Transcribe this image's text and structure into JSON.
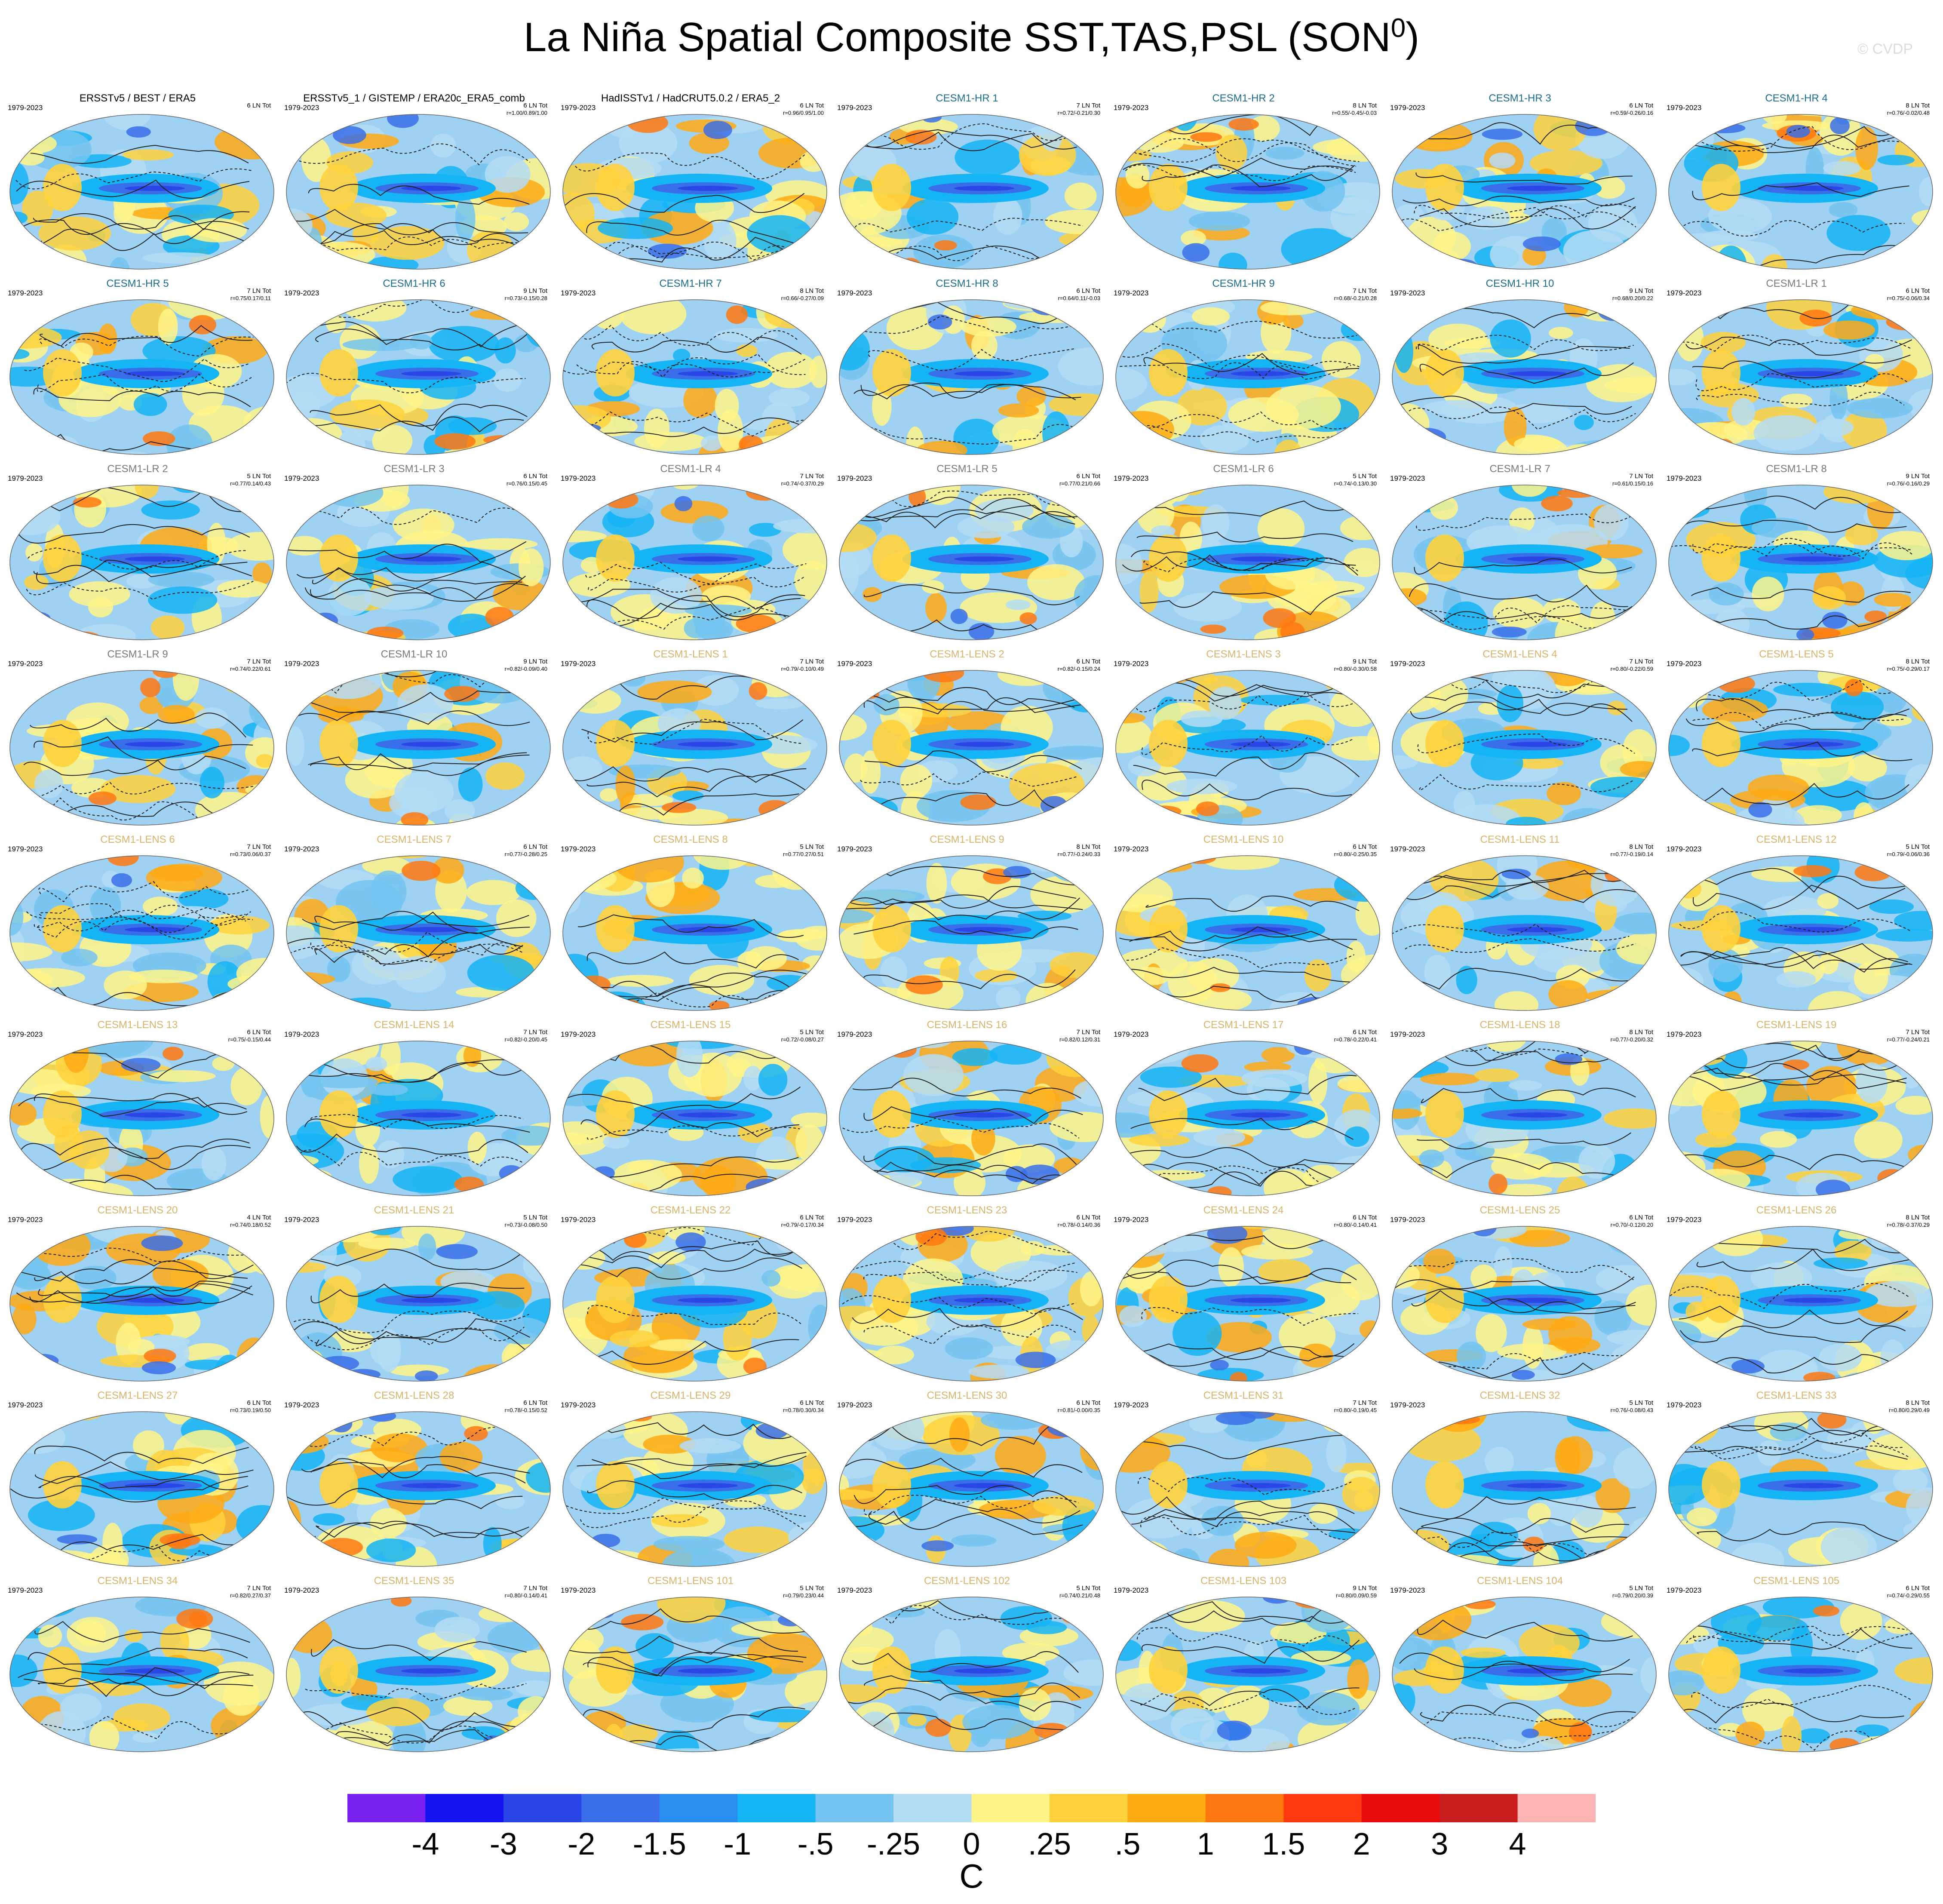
{
  "title": "La Niña Spatial Composite SST,TAS,PSL (SON",
  "title_sup": "0",
  "title_close": ")",
  "watermark": "© CVDP",
  "colors": {
    "panel_title_obs": "#000000",
    "panel_title_hr": "#1a6d8f",
    "panel_title_lr": "#7a7a7a",
    "panel_title_lens": "#d9b46a",
    "ocean_cool": "#59b8f0",
    "ocean_deep_cool": "#3050e0",
    "warm": "#ffd33a"
  },
  "chart_data": {
    "type": "heatmap",
    "variables": [
      "SST",
      "TAS",
      "PSL"
    ],
    "season": "SON0",
    "colorbar": {
      "levels": [
        "-4",
        "-3",
        "-2",
        "-1.5",
        "-1",
        "-.5",
        "-.25",
        "0",
        ".25",
        ".5",
        "1",
        "1.5",
        "2",
        "3",
        "4"
      ],
      "colors": [
        "#7a22f0",
        "#1414f0",
        "#2a46e6",
        "#3a6ee8",
        "#2a8ef0",
        "#14b4f5",
        "#74c4f0",
        "#b4dcf4",
        "#fff488",
        "#ffd23c",
        "#ffaa14",
        "#ff7810",
        "#ff3a10",
        "#e80a0a",
        "#c81e1e",
        "#ffb4b4"
      ],
      "unit": "C"
    },
    "panels": [
      {
        "title": "ERSSTv5 / BEST / ERA5",
        "group": "obs",
        "years": "1979-2023",
        "count": "6 LN Tot",
        "stats": ""
      },
      {
        "title": "ERSSTv5_1 / GISTEMP / ERA20c_ERA5_comb",
        "group": "obs",
        "years": "1979-2023",
        "count": "6 LN Tot",
        "stats": "r=1.00/0.89/1.00"
      },
      {
        "title": "HadISSTv1 / HadCRUT5.0.2 / ERA5_2",
        "group": "obs",
        "years": "1979-2023",
        "count": "6 LN Tot",
        "stats": "r=0.96/0.95/1.00"
      },
      {
        "title": "CESM1-HR 1",
        "group": "hr",
        "years": "1979-2023",
        "count": "7 LN Tot",
        "stats": "r=0.72/-0.21/0.30"
      },
      {
        "title": "CESM1-HR 2",
        "group": "hr",
        "years": "1979-2023",
        "count": "8 LN Tot",
        "stats": "r=0.55/-0.45/-0.03"
      },
      {
        "title": "CESM1-HR 3",
        "group": "hr",
        "years": "1979-2023",
        "count": "6 LN Tot",
        "stats": "r=0.59/-0.26/0.16"
      },
      {
        "title": "CESM1-HR 4",
        "group": "hr",
        "years": "1979-2023",
        "count": "8 LN Tot",
        "stats": "r=0.76/-0.02/0.48"
      },
      {
        "title": "CESM1-HR 5",
        "group": "hr",
        "years": "1979-2023",
        "count": "7 LN Tot",
        "stats": "r=0.75/0.17/0.11"
      },
      {
        "title": "CESM1-HR 6",
        "group": "hr",
        "years": "1979-2023",
        "count": "9 LN Tot",
        "stats": "r=0.73/-0.15/0.28"
      },
      {
        "title": "CESM1-HR 7",
        "group": "hr",
        "years": "1979-2023",
        "count": "8 LN Tot",
        "stats": "r=0.66/-0.27/0.09"
      },
      {
        "title": "CESM1-HR 8",
        "group": "hr",
        "years": "1979-2023",
        "count": "6 LN Tot",
        "stats": "r=0.64/0.11/-0.03"
      },
      {
        "title": "CESM1-HR 9",
        "group": "hr",
        "years": "1979-2023",
        "count": "7 LN Tot",
        "stats": "r=0.68/-0.21/0.28"
      },
      {
        "title": "CESM1-HR 10",
        "group": "hr",
        "years": "1979-2023",
        "count": "9 LN Tot",
        "stats": "r=0.68/0.20/0.22"
      },
      {
        "title": "CESM1-LR 1",
        "group": "lr",
        "years": "1979-2023",
        "count": "6 LN Tot",
        "stats": "r=0.75/-0.06/0.34"
      },
      {
        "title": "CESM1-LR 2",
        "group": "lr",
        "years": "1979-2023",
        "count": "5 LN Tot",
        "stats": "r=0.77/0.14/0.43"
      },
      {
        "title": "CESM1-LR 3",
        "group": "lr",
        "years": "1979-2023",
        "count": "6 LN Tot",
        "stats": "r=0.76/0.15/0.45"
      },
      {
        "title": "CESM1-LR 4",
        "group": "lr",
        "years": "1979-2023",
        "count": "7 LN Tot",
        "stats": "r=0.74/-0.37/0.29"
      },
      {
        "title": "CESM1-LR 5",
        "group": "lr",
        "years": "1979-2023",
        "count": "6 LN Tot",
        "stats": "r=0.77/0.21/0.66"
      },
      {
        "title": "CESM1-LR 6",
        "group": "lr",
        "years": "1979-2023",
        "count": "5 LN Tot",
        "stats": "r=0.74/-0.13/0.30"
      },
      {
        "title": "CESM1-LR 7",
        "group": "lr",
        "years": "1979-2023",
        "count": "7 LN Tot",
        "stats": "r=0.61/0.15/0.16"
      },
      {
        "title": "CESM1-LR 8",
        "group": "lr",
        "years": "1979-2023",
        "count": "9 LN Tot",
        "stats": "r=0.76/-0.16/0.29"
      },
      {
        "title": "CESM1-LR 9",
        "group": "lr",
        "years": "1979-2023",
        "count": "7 LN Tot",
        "stats": "r=0.74/0.22/0.61"
      },
      {
        "title": "CESM1-LR 10",
        "group": "lr",
        "years": "1979-2023",
        "count": "9 LN Tot",
        "stats": "r=0.82/-0.09/0.40"
      },
      {
        "title": "CESM1-LENS 1",
        "group": "lens",
        "years": "1979-2023",
        "count": "7 LN Tot",
        "stats": "r=0.79/-0.10/0.49"
      },
      {
        "title": "CESM1-LENS 2",
        "group": "lens",
        "years": "1979-2023",
        "count": "6 LN Tot",
        "stats": "r=0.82/-0.15/0.24"
      },
      {
        "title": "CESM1-LENS 3",
        "group": "lens",
        "years": "1979-2023",
        "count": "9 LN Tot",
        "stats": "r=0.80/-0.30/0.58"
      },
      {
        "title": "CESM1-LENS 4",
        "group": "lens",
        "years": "1979-2023",
        "count": "7 LN Tot",
        "stats": "r=0.80/-0.22/0.59"
      },
      {
        "title": "CESM1-LENS 5",
        "group": "lens",
        "years": "1979-2023",
        "count": "8 LN Tot",
        "stats": "r=0.75/-0.29/0.17"
      },
      {
        "title": "CESM1-LENS 6",
        "group": "lens",
        "years": "1979-2023",
        "count": "7 LN Tot",
        "stats": "r=0.73/0.06/0.37"
      },
      {
        "title": "CESM1-LENS 7",
        "group": "lens",
        "years": "1979-2023",
        "count": "6 LN Tot",
        "stats": "r=0.77/-0.28/0.25"
      },
      {
        "title": "CESM1-LENS 8",
        "group": "lens",
        "years": "1979-2023",
        "count": "5 LN Tot",
        "stats": "r=0.77/0.27/0.51"
      },
      {
        "title": "CESM1-LENS 9",
        "group": "lens",
        "years": "1979-2023",
        "count": "8 LN Tot",
        "stats": "r=0.77/-0.24/0.33"
      },
      {
        "title": "CESM1-LENS 10",
        "group": "lens",
        "years": "1979-2023",
        "count": "6 LN Tot",
        "stats": "r=0.80/-0.25/0.35"
      },
      {
        "title": "CESM1-LENS 11",
        "group": "lens",
        "years": "1979-2023",
        "count": "8 LN Tot",
        "stats": "r=0.77/-0.19/0.14"
      },
      {
        "title": "CESM1-LENS 12",
        "group": "lens",
        "years": "1979-2023",
        "count": "5 LN Tot",
        "stats": "r=0.79/-0.06/0.36"
      },
      {
        "title": "CESM1-LENS 13",
        "group": "lens",
        "years": "1979-2023",
        "count": "6 LN Tot",
        "stats": "r=0.75/-0.15/0.44"
      },
      {
        "title": "CESM1-LENS 14",
        "group": "lens",
        "years": "1979-2023",
        "count": "7 LN Tot",
        "stats": "r=0.82/-0.20/0.45"
      },
      {
        "title": "CESM1-LENS 15",
        "group": "lens",
        "years": "1979-2023",
        "count": "5 LN Tot",
        "stats": "r=0.72/-0.08/0.27"
      },
      {
        "title": "CESM1-LENS 16",
        "group": "lens",
        "years": "1979-2023",
        "count": "7 LN Tot",
        "stats": "r=0.82/0.12/0.31"
      },
      {
        "title": "CESM1-LENS 17",
        "group": "lens",
        "years": "1979-2023",
        "count": "6 LN Tot",
        "stats": "r=0.78/-0.22/0.41"
      },
      {
        "title": "CESM1-LENS 18",
        "group": "lens",
        "years": "1979-2023",
        "count": "8 LN Tot",
        "stats": "r=0.77/-0.20/0.32"
      },
      {
        "title": "CESM1-LENS 19",
        "group": "lens",
        "years": "1979-2023",
        "count": "7 LN Tot",
        "stats": "r=0.77/-0.24/0.21"
      },
      {
        "title": "CESM1-LENS 20",
        "group": "lens",
        "years": "1979-2023",
        "count": "4 LN Tot",
        "stats": "r=0.74/0.18/0.52"
      },
      {
        "title": "CESM1-LENS 21",
        "group": "lens",
        "years": "1979-2023",
        "count": "5 LN Tot",
        "stats": "r=0.73/-0.08/0.50"
      },
      {
        "title": "CESM1-LENS 22",
        "group": "lens",
        "years": "1979-2023",
        "count": "6 LN Tot",
        "stats": "r=0.79/-0.17/0.34"
      },
      {
        "title": "CESM1-LENS 23",
        "group": "lens",
        "years": "1979-2023",
        "count": "6 LN Tot",
        "stats": "r=0.78/-0.14/0.36"
      },
      {
        "title": "CESM1-LENS 24",
        "group": "lens",
        "years": "1979-2023",
        "count": "6 LN Tot",
        "stats": "r=0.80/-0.14/0.41"
      },
      {
        "title": "CESM1-LENS 25",
        "group": "lens",
        "years": "1979-2023",
        "count": "6 LN Tot",
        "stats": "r=0.70/-0.12/0.20"
      },
      {
        "title": "CESM1-LENS 26",
        "group": "lens",
        "years": "1979-2023",
        "count": "8 LN Tot",
        "stats": "r=0.78/-0.37/0.29"
      },
      {
        "title": "CESM1-LENS 27",
        "group": "lens",
        "years": "1979-2023",
        "count": "6 LN Tot",
        "stats": "r=0.73/0.19/0.50"
      },
      {
        "title": "CESM1-LENS 28",
        "group": "lens",
        "years": "1979-2023",
        "count": "6 LN Tot",
        "stats": "r=0.78/-0.15/0.52"
      },
      {
        "title": "CESM1-LENS 29",
        "group": "lens",
        "years": "1979-2023",
        "count": "6 LN Tot",
        "stats": "r=0.78/0.30/0.34"
      },
      {
        "title": "CESM1-LENS 30",
        "group": "lens",
        "years": "1979-2023",
        "count": "6 LN Tot",
        "stats": "r=0.81/-0.00/0.35"
      },
      {
        "title": "CESM1-LENS 31",
        "group": "lens",
        "years": "1979-2023",
        "count": "7 LN Tot",
        "stats": "r=0.80/-0.19/0.45"
      },
      {
        "title": "CESM1-LENS 32",
        "group": "lens",
        "years": "1979-2023",
        "count": "5 LN Tot",
        "stats": "r=0.76/-0.08/0.43"
      },
      {
        "title": "CESM1-LENS 33",
        "group": "lens",
        "years": "1979-2023",
        "count": "8 LN Tot",
        "stats": "r=0.80/0.29/0.49"
      },
      {
        "title": "CESM1-LENS 34",
        "group": "lens",
        "years": "1979-2023",
        "count": "7 LN Tot",
        "stats": "r=0.82/0.27/0.37"
      },
      {
        "title": "CESM1-LENS 35",
        "group": "lens",
        "years": "1979-2023",
        "count": "7 LN Tot",
        "stats": "r=0.80/-0.14/0.41"
      },
      {
        "title": "CESM1-LENS 101",
        "group": "lens",
        "years": "1979-2023",
        "count": "5 LN Tot",
        "stats": "r=0.79/0.23/0.44"
      },
      {
        "title": "CESM1-LENS 102",
        "group": "lens",
        "years": "1979-2023",
        "count": "5 LN Tot",
        "stats": "r=0.74/0.21/0.48"
      },
      {
        "title": "CESM1-LENS 103",
        "group": "lens",
        "years": "1979-2023",
        "count": "9 LN Tot",
        "stats": "r=0.80/0.09/0.59"
      },
      {
        "title": "CESM1-LENS 104",
        "group": "lens",
        "years": "1979-2023",
        "count": "5 LN Tot",
        "stats": "r=0.79/0.20/0.39"
      },
      {
        "title": "CESM1-LENS 105",
        "group": "lens",
        "years": "1979-2023",
        "count": "6 LN Tot",
        "stats": "r=0.74/-0.29/0.55"
      }
    ]
  }
}
